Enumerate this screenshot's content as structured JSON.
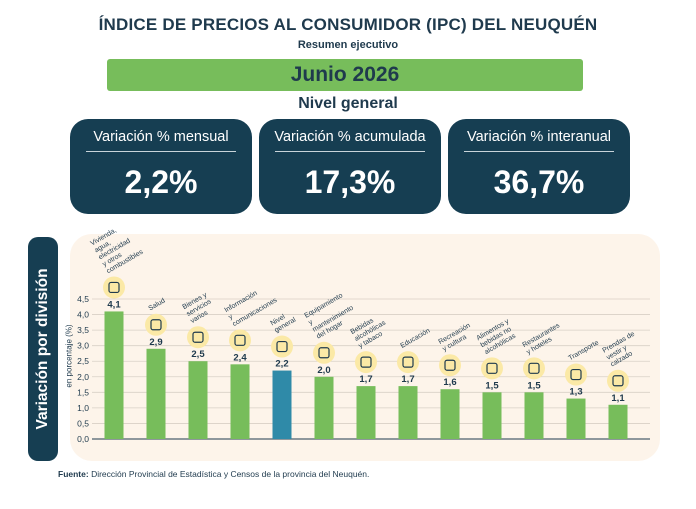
{
  "header": {
    "title": "ÍNDICE DE PRECIOS AL CONSUMIDOR (IPC) DEL NEUQUÉN",
    "subtitle": "Resumen ejecutivo",
    "period": "Junio 2026",
    "level": "Nivel general"
  },
  "cards": [
    {
      "label": "Variación % mensual",
      "value": "2,2%"
    },
    {
      "label": "Variación % acumulada",
      "value": "17,3%"
    },
    {
      "label": "Variación % interanual",
      "value": "36,7%"
    }
  ],
  "chart_side_title": "Variación por división",
  "chart_data": {
    "type": "bar",
    "ylabel": "en porcentaje (%)",
    "ylim": [
      0,
      4.5
    ],
    "yticks": [
      "0,0",
      "0,5",
      "1,0",
      "1,5",
      "2,0",
      "2,5",
      "3,0",
      "3,5",
      "4,0",
      "4,5"
    ],
    "categories": [
      "Vivienda, agua, electricidad y otros combustibles",
      "Salud",
      "Bienes y servicios varios",
      "Información y comunicaciones",
      "Nivel general",
      "Equipamiento y mantenimiento del hogar",
      "Bebidas alcohólicas y tabaco",
      "Educación",
      "Recreación y cultura",
      "Alimentos y bebidas no alcohólicas",
      "Restaurantes y hoteles",
      "Transporte",
      "Prendas de vestir y calzado"
    ],
    "values": [
      4.1,
      2.9,
      2.5,
      2.4,
      2.2,
      2.0,
      1.7,
      1.7,
      1.6,
      1.5,
      1.5,
      1.3,
      1.1
    ],
    "value_labels": [
      "4,1",
      "2,9",
      "2,5",
      "2,4",
      "2,2",
      "2,0",
      "1,7",
      "1,7",
      "1,6",
      "1,5",
      "1,5",
      "1,3",
      "1,1"
    ],
    "icons": [
      "house-icon",
      "microscope-icon",
      "scissors-icon",
      "smartphone-icon",
      "register-icon",
      "washing-machine-icon",
      "bottle-icon",
      "ruler-icon",
      "theater-masks-icon",
      "jar-icon",
      "cloche-icon",
      "car-icon",
      "shirt-icon"
    ],
    "highlight_index": 4,
    "colors": {
      "bar": "#77bd5b",
      "highlight": "#2f8aa8",
      "icon_bg": "#fbe9a6",
      "grid": "#d8d0c6"
    }
  },
  "source": {
    "label": "Fuente:",
    "text": "Dirección Provincial de Estadística y Censos de la provincia del Neuquén."
  }
}
